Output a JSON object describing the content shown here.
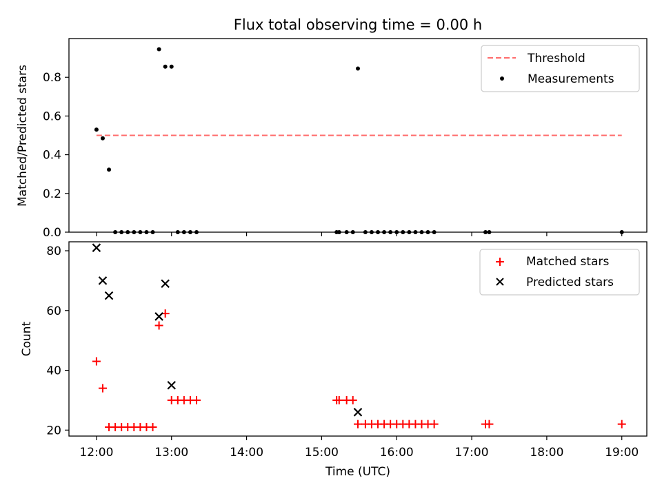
{
  "title": "Flux total observing time = 0.00 h",
  "xlabel": "Time (UTC)",
  "x_ticks": [
    "12:00",
    "13:00",
    "14:00",
    "15:00",
    "16:00",
    "17:00",
    "18:00",
    "19:00"
  ],
  "colors": {
    "threshold": "#ff6b6b",
    "measurements": "#000000",
    "matched": "#ff0000",
    "predicted": "#000000"
  },
  "chart_data": [
    {
      "type": "scatter",
      "ylabel": "Matched/Predicted stars",
      "xlim": [
        "11:38",
        "19:20"
      ],
      "ylim": [
        0,
        1.0
      ],
      "y_ticks": [
        "0.0",
        "0.2",
        "0.4",
        "0.6",
        "0.8"
      ],
      "legend_position": "top-right",
      "threshold": {
        "name": "Threshold",
        "value": 0.5,
        "x": [
          "12:00",
          "19:00"
        ]
      },
      "series": [
        {
          "name": "Measurements",
          "points": [
            [
              "12:00",
              0.53
            ],
            [
              "12:05",
              0.485
            ],
            [
              "12:10",
              0.323
            ],
            [
              "12:15",
              0
            ],
            [
              "12:20",
              0
            ],
            [
              "12:25",
              0
            ],
            [
              "12:30",
              0
            ],
            [
              "12:35",
              0
            ],
            [
              "12:40",
              0
            ],
            [
              "12:45",
              0
            ],
            [
              "12:50",
              0.945
            ],
            [
              "12:55",
              0.855
            ],
            [
              "13:00",
              0.855
            ],
            [
              "13:05",
              0
            ],
            [
              "13:10",
              0
            ],
            [
              "13:15",
              0
            ],
            [
              "13:20",
              0
            ],
            [
              "15:12",
              0
            ],
            [
              "15:14",
              0
            ],
            [
              "15:20",
              0
            ],
            [
              "15:25",
              0
            ],
            [
              "15:29",
              0.845
            ],
            [
              "15:35",
              0
            ],
            [
              "15:40",
              0
            ],
            [
              "15:45",
              0
            ],
            [
              "15:50",
              0
            ],
            [
              "15:55",
              0
            ],
            [
              "16:00",
              0
            ],
            [
              "16:05",
              0
            ],
            [
              "16:10",
              0
            ],
            [
              "16:15",
              0
            ],
            [
              "16:20",
              0
            ],
            [
              "16:25",
              0
            ],
            [
              "16:30",
              0
            ],
            [
              "17:11",
              0
            ],
            [
              "17:14",
              0
            ],
            [
              "19:00",
              0
            ]
          ]
        }
      ]
    },
    {
      "type": "scatter",
      "ylabel": "Count",
      "xlim": [
        "11:38",
        "19:20"
      ],
      "ylim": [
        18,
        83
      ],
      "y_ticks": [
        "20",
        "40",
        "60",
        "80"
      ],
      "legend_position": "top-right",
      "series": [
        {
          "name": "Matched stars",
          "marker": "plus",
          "points": [
            [
              "12:00",
              43
            ],
            [
              "12:05",
              34
            ],
            [
              "12:10",
              21
            ],
            [
              "12:15",
              21
            ],
            [
              "12:20",
              21
            ],
            [
              "12:25",
              21
            ],
            [
              "12:30",
              21
            ],
            [
              "12:35",
              21
            ],
            [
              "12:40",
              21
            ],
            [
              "12:45",
              21
            ],
            [
              "12:50",
              55
            ],
            [
              "12:55",
              59
            ],
            [
              "13:00",
              30
            ],
            [
              "13:05",
              30
            ],
            [
              "13:10",
              30
            ],
            [
              "13:15",
              30
            ],
            [
              "13:20",
              30
            ],
            [
              "15:12",
              30
            ],
            [
              "15:14",
              30
            ],
            [
              "15:20",
              30
            ],
            [
              "15:25",
              30
            ],
            [
              "15:29",
              22
            ],
            [
              "15:35",
              22
            ],
            [
              "15:40",
              22
            ],
            [
              "15:45",
              22
            ],
            [
              "15:50",
              22
            ],
            [
              "15:55",
              22
            ],
            [
              "16:00",
              22
            ],
            [
              "16:05",
              22
            ],
            [
              "16:10",
              22
            ],
            [
              "16:15",
              22
            ],
            [
              "16:20",
              22
            ],
            [
              "16:25",
              22
            ],
            [
              "16:30",
              22
            ],
            [
              "17:11",
              22
            ],
            [
              "17:14",
              22
            ],
            [
              "19:00",
              22
            ]
          ]
        },
        {
          "name": "Predicted stars",
          "marker": "x",
          "points": [
            [
              "12:00",
              81
            ],
            [
              "12:05",
              70
            ],
            [
              "12:10",
              65
            ],
            [
              "12:50",
              58
            ],
            [
              "12:55",
              69
            ],
            [
              "13:00",
              35
            ],
            [
              "15:29",
              26
            ]
          ]
        }
      ]
    }
  ]
}
